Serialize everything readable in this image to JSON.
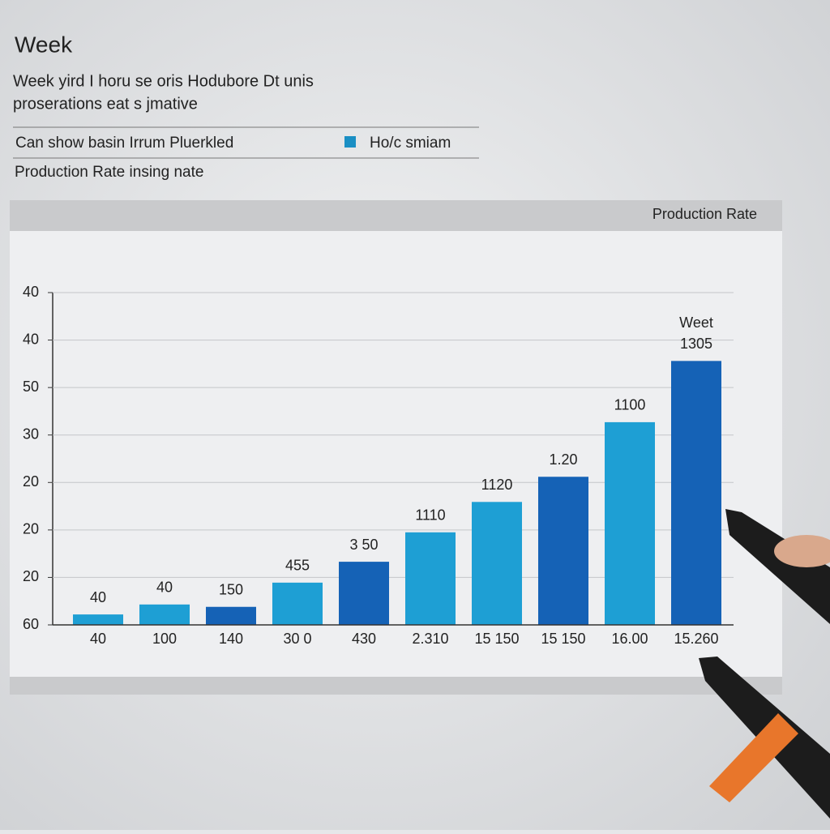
{
  "chart_data": {
    "type": "bar",
    "title": "Week",
    "subtitle": [
      "Week yird I horu se oris Hodubore Dt unis",
      "proserations eat s jmative"
    ],
    "note": "Can show basin Irrum Pluerkled",
    "legend": {
      "label": "Ho/c smiam",
      "color": "#1a8fc4"
    },
    "caption": "Production Rate insing nate",
    "panel_title": "Production Rate",
    "top_note": "Weet",
    "categories": [
      "40",
      "100",
      "140",
      "30 0",
      "430",
      "2.310",
      "15 150",
      "15 150",
      "16.00",
      "15.260"
    ],
    "values": [
      0.22,
      0.43,
      0.38,
      0.89,
      1.33,
      1.95,
      2.59,
      3.12,
      4.27,
      5.56
    ],
    "bar_labels": [
      "40",
      "40",
      "150",
      "455",
      "3 50",
      "1110",
      "1120",
      "1.20",
      "1100",
      "1305"
    ],
    "colors": [
      "#1e9fd4",
      "#1e9fd4",
      "#1562b6",
      "#1e9fd4",
      "#1562b6",
      "#1e9fd4",
      "#1e9fd4",
      "#1562b6",
      "#1e9fd4",
      "#1562b6"
    ],
    "ylim": [
      0,
      7
    ],
    "yticks": [
      {
        "value": 0,
        "label": "60"
      },
      {
        "value": 1,
        "label": "20"
      },
      {
        "value": 2,
        "label": "20"
      },
      {
        "value": 3,
        "label": "20"
      },
      {
        "value": 4,
        "label": "30"
      },
      {
        "value": 5,
        "label": "50"
      },
      {
        "value": 6,
        "label": "40"
      },
      {
        "value": 7,
        "label": "40"
      }
    ],
    "grid": true
  }
}
